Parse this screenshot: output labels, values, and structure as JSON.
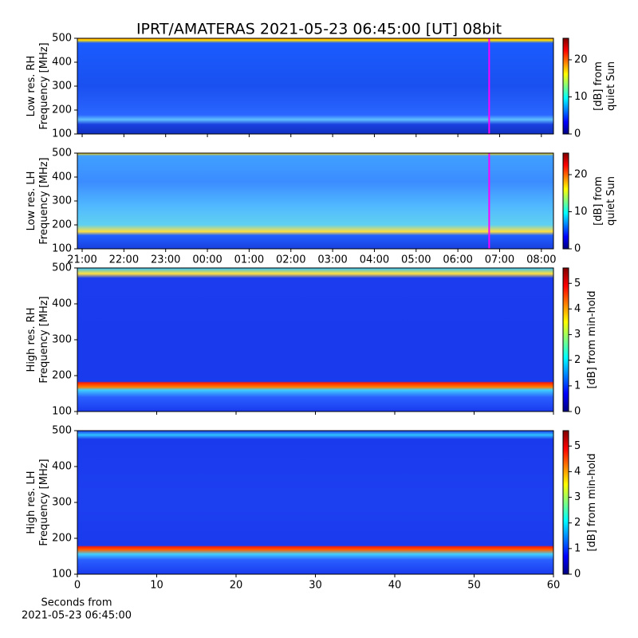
{
  "chart_data": [
    {
      "type": "heatmap",
      "title": "IPRT/AMATERAS 2021-05-23 06:45:00 [UT]   08bit",
      "ylabel": [
        "Low res. RH",
        "Frequency [MHz]"
      ],
      "xlim": [
        20.885,
        32.29
      ],
      "xticks": [
        {
          "value": 21,
          "label": "21:00"
        },
        {
          "value": 22,
          "label": "22:00"
        },
        {
          "value": 23,
          "label": "23:00"
        },
        {
          "value": 24,
          "label": "00:00"
        },
        {
          "value": 25,
          "label": "01:00"
        },
        {
          "value": 26,
          "label": "02:00"
        },
        {
          "value": 27,
          "label": "03:00"
        },
        {
          "value": 28,
          "label": "04:00"
        },
        {
          "value": 29,
          "label": "05:00"
        },
        {
          "value": 30,
          "label": "06:00"
        },
        {
          "value": 31,
          "label": "07:00"
        },
        {
          "value": 32,
          "label": "08:00"
        }
      ],
      "show_xticklabels": false,
      "ylim": [
        100,
        500
      ],
      "yticks": [
        100,
        200,
        300,
        400,
        500
      ],
      "vline": 30.75,
      "vline_color": "#ff00ff",
      "colorbar": {
        "label": [
          "[dB] from",
          "quiet Sun"
        ],
        "lim": [
          0,
          25.8
        ],
        "ticks": [
          0,
          10,
          20
        ]
      }
    },
    {
      "type": "heatmap",
      "ylabel": [
        "Low res. LH",
        "Frequency [MHz]"
      ],
      "xlim": [
        20.885,
        32.29
      ],
      "xticks": [
        {
          "value": 21,
          "label": "21:00"
        },
        {
          "value": 22,
          "label": "22:00"
        },
        {
          "value": 23,
          "label": "23:00"
        },
        {
          "value": 24,
          "label": "00:00"
        },
        {
          "value": 25,
          "label": "01:00"
        },
        {
          "value": 26,
          "label": "02:00"
        },
        {
          "value": 27,
          "label": "03:00"
        },
        {
          "value": 28,
          "label": "04:00"
        },
        {
          "value": 29,
          "label": "05:00"
        },
        {
          "value": 30,
          "label": "06:00"
        },
        {
          "value": 31,
          "label": "07:00"
        },
        {
          "value": 32,
          "label": "08:00"
        }
      ],
      "show_xticklabels": true,
      "ylim": [
        100,
        500
      ],
      "yticks": [
        100,
        200,
        300,
        400,
        500
      ],
      "vline": 30.75,
      "vline_color": "#ff00ff",
      "colorbar": {
        "label": [
          "[dB] from",
          "quiet Sun"
        ],
        "lim": [
          0,
          25.8
        ],
        "ticks": [
          0,
          10,
          20
        ]
      }
    },
    {
      "type": "heatmap",
      "ylabel": [
        "High res. RH",
        "Frequency [MHz]"
      ],
      "xlim": [
        0,
        60
      ],
      "xticks": [
        0,
        10,
        20,
        30,
        40,
        50,
        60
      ],
      "show_xticklabels": false,
      "ylim": [
        100,
        500
      ],
      "yticks": [
        100,
        200,
        300,
        400,
        500
      ],
      "colorbar": {
        "label": [
          "[dB] from min-hold"
        ],
        "lim": [
          0,
          5.6
        ],
        "ticks": [
          0,
          1,
          2,
          3,
          4,
          5
        ]
      }
    },
    {
      "type": "heatmap",
      "ylabel": [
        "High res. LH",
        "Frequency [MHz]"
      ],
      "xlabel": [
        "Seconds from",
        "2021-05-23 06:45:00"
      ],
      "xlim": [
        0,
        60
      ],
      "xticks": [
        0,
        10,
        20,
        30,
        40,
        50,
        60
      ],
      "show_xticklabels": true,
      "ylim": [
        100,
        500
      ],
      "yticks": [
        100,
        200,
        300,
        400,
        500
      ],
      "colorbar": {
        "label": [
          "[dB] from min-hold"
        ],
        "lim": [
          0,
          5.6
        ],
        "ticks": [
          0,
          1,
          2,
          3,
          4,
          5
        ]
      }
    }
  ]
}
